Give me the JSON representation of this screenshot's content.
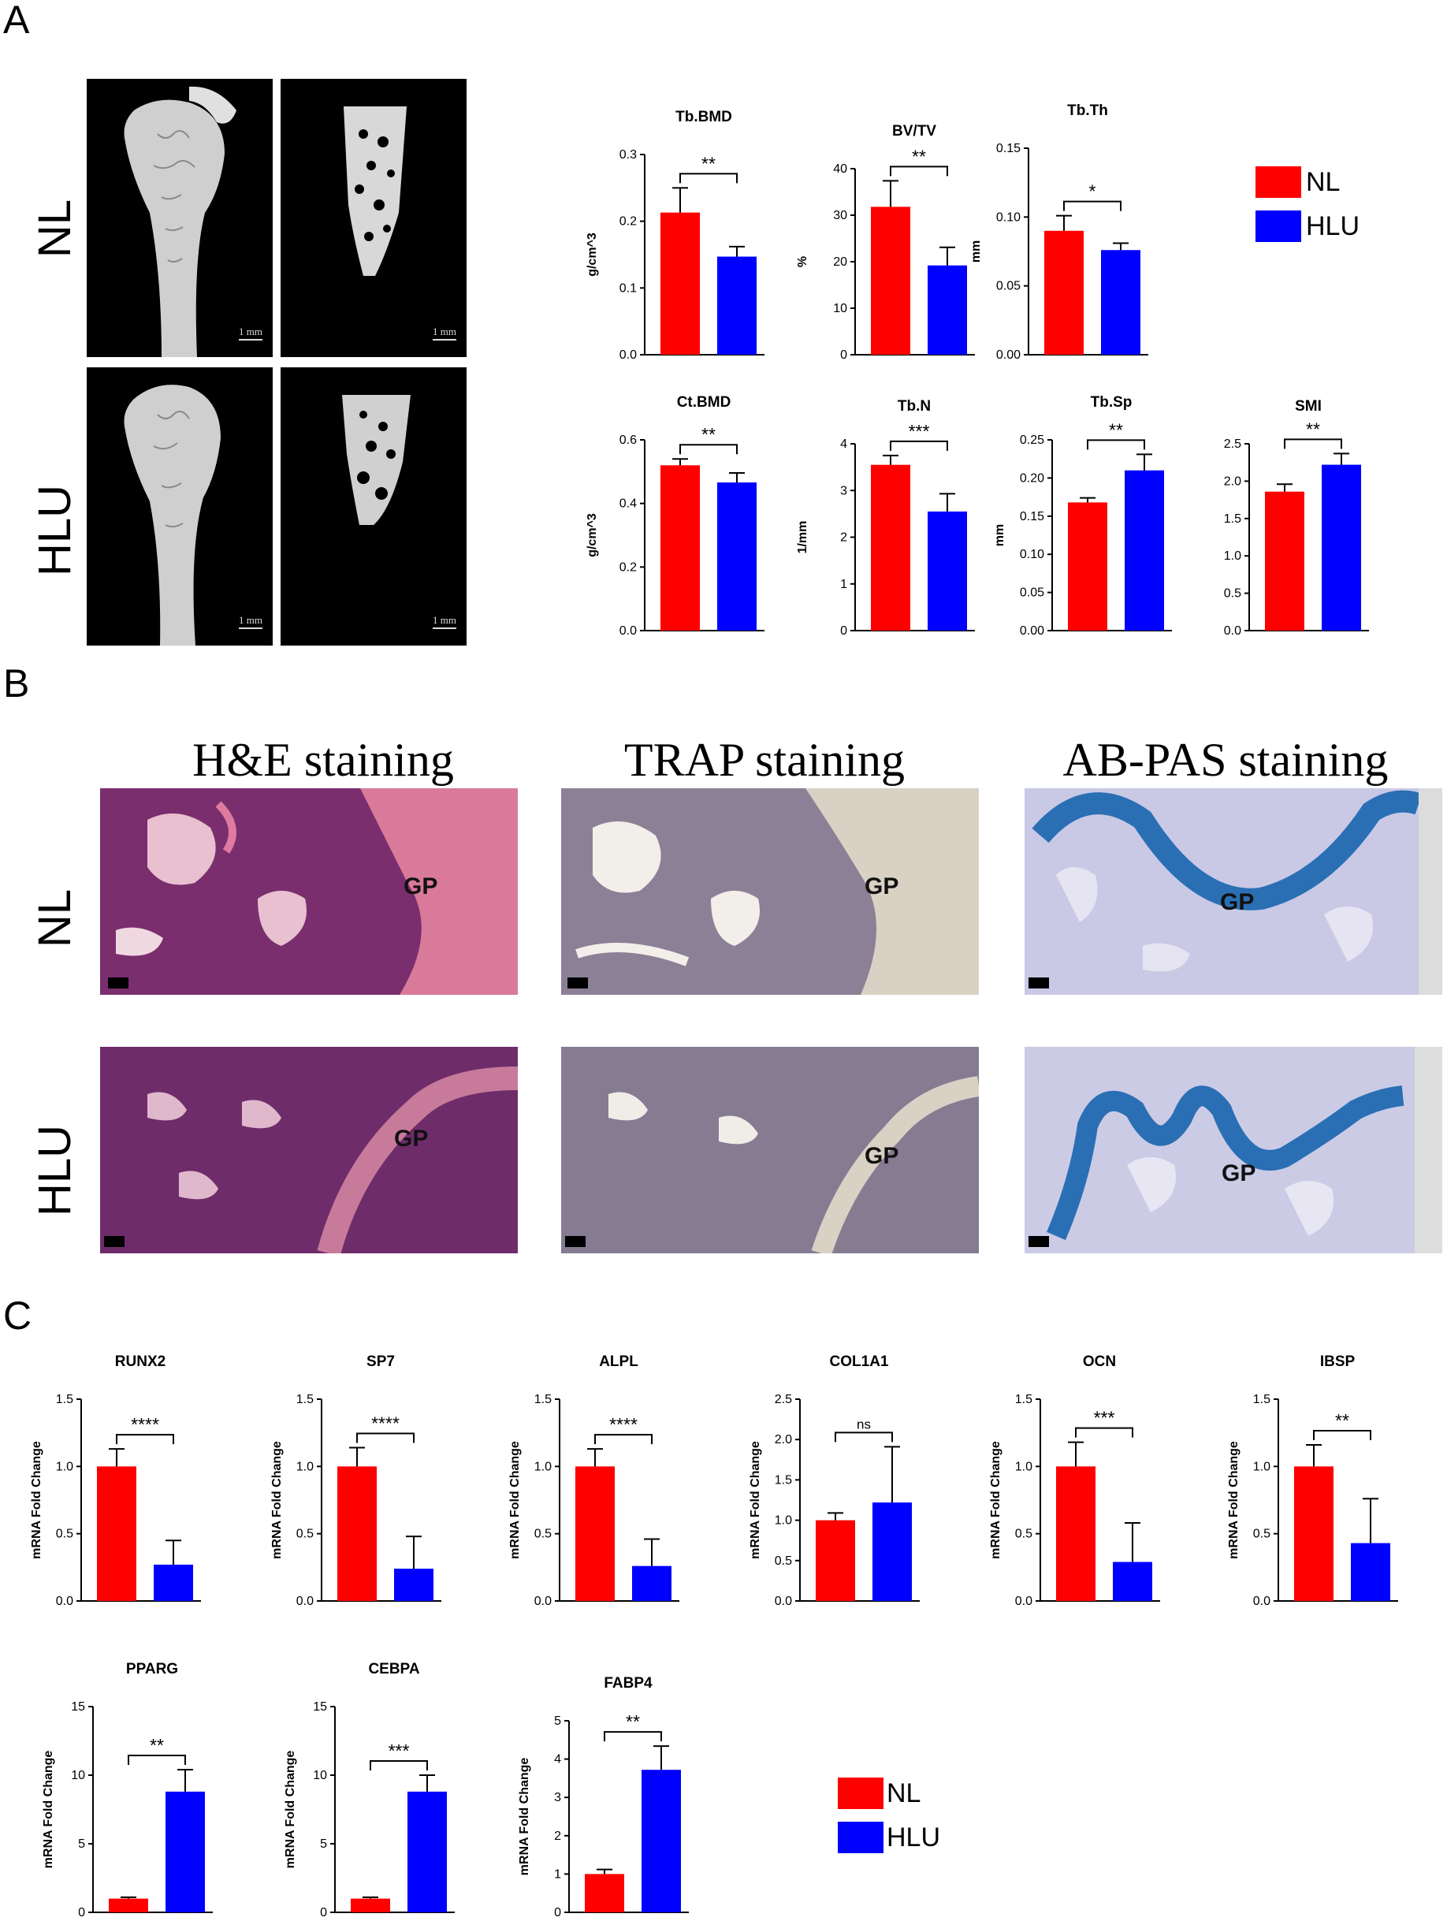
{
  "panels": {
    "a": "A",
    "b": "B",
    "c": "C"
  },
  "groups": {
    "nl": "NL",
    "hlu": "HLU"
  },
  "colors": {
    "nl": "#ff0000",
    "hlu": "#0000ff"
  },
  "microct": {
    "scale_label": "1 mm"
  },
  "staining": {
    "he_title": "H&E staining",
    "trap_title": "TRAP staining",
    "abpas_title": "AB-PAS staining",
    "gp_label": "GP"
  },
  "legend": {
    "nl": "NL",
    "hlu": "HLU"
  },
  "chart_data": [
    {
      "id": "tbbmd",
      "type": "bar",
      "title": "Tb.BMD",
      "ylabel": "g/cm^3",
      "ylim": [
        0,
        0.3
      ],
      "yticks": [
        "0.0",
        "0.1",
        "0.2",
        "0.3"
      ],
      "tickvals": [
        0,
        0.1,
        0.2,
        0.3
      ],
      "categories": [
        "NL",
        "HLU"
      ],
      "values": [
        0.213,
        0.147
      ],
      "errors": [
        0.037,
        0.015
      ],
      "sig": "**"
    },
    {
      "id": "bvtv",
      "type": "bar",
      "title": "BV/TV",
      "ylabel": "%",
      "ylim": [
        0,
        40
      ],
      "yticks": [
        "0",
        "10",
        "20",
        "30",
        "40"
      ],
      "tickvals": [
        0,
        10,
        20,
        30,
        40
      ],
      "categories": [
        "NL",
        "HLU"
      ],
      "values": [
        31.8,
        19.2
      ],
      "errors": [
        5.6,
        3.9
      ],
      "sig": "**"
    },
    {
      "id": "tbth",
      "type": "bar",
      "title": "Tb.Th",
      "ylabel": "mm",
      "ylim": [
        0,
        0.15
      ],
      "yticks": [
        "0.00",
        "0.05",
        "0.10",
        "0.15"
      ],
      "tickvals": [
        0,
        0.05,
        0.1,
        0.15
      ],
      "categories": [
        "NL",
        "HLU"
      ],
      "values": [
        0.09,
        0.076
      ],
      "errors": [
        0.011,
        0.005
      ],
      "sig": "*"
    },
    {
      "id": "ctbmd",
      "type": "bar",
      "title": "Ct.BMD",
      "ylabel": "g/cm^3",
      "ylim": [
        0,
        0.6
      ],
      "yticks": [
        "0.0",
        "0.2",
        "0.4",
        "0.6"
      ],
      "tickvals": [
        0,
        0.2,
        0.4,
        0.6
      ],
      "categories": [
        "NL",
        "HLU"
      ],
      "values": [
        0.52,
        0.466
      ],
      "errors": [
        0.02,
        0.03
      ],
      "sig": "**"
    },
    {
      "id": "tbn",
      "type": "bar",
      "title": "Tb.N",
      "ylabel": "1/mm",
      "ylim": [
        0,
        4
      ],
      "yticks": [
        "0",
        "1",
        "2",
        "3",
        "4"
      ],
      "tickvals": [
        0,
        1,
        2,
        3,
        4
      ],
      "categories": [
        "NL",
        "HLU"
      ],
      "values": [
        3.55,
        2.55
      ],
      "errors": [
        0.2,
        0.38
      ],
      "sig": "***"
    },
    {
      "id": "tbsp",
      "type": "bar",
      "title": "Tb.Sp",
      "ylabel": "mm",
      "ylim": [
        0,
        0.25
      ],
      "yticks": [
        "0.00",
        "0.05",
        "0.10",
        "0.15",
        "0.20",
        "0.25"
      ],
      "tickvals": [
        0,
        0.05,
        0.1,
        0.15,
        0.2,
        0.25
      ],
      "categories": [
        "NL",
        "HLU"
      ],
      "values": [
        0.168,
        0.21
      ],
      "errors": [
        0.006,
        0.021
      ],
      "sig": "**"
    },
    {
      "id": "smi",
      "type": "bar",
      "title": "SMI",
      "ylabel": "",
      "ylim": [
        0,
        2.5
      ],
      "yticks": [
        "0.0",
        "0.5",
        "1.0",
        "1.5",
        "2.0",
        "2.5"
      ],
      "tickvals": [
        0,
        0.5,
        1,
        1.5,
        2,
        2.5
      ],
      "categories": [
        "NL",
        "HLU"
      ],
      "values": [
        1.86,
        2.22
      ],
      "errors": [
        0.1,
        0.15
      ],
      "sig": "**"
    },
    {
      "id": "runx2",
      "type": "bar",
      "title": "RUNX2",
      "ylabel": "mRNA Fold Change",
      "ylim": [
        0,
        1.5
      ],
      "yticks": [
        "0.0",
        "0.5",
        "1.0",
        "1.5"
      ],
      "tickvals": [
        0,
        0.5,
        1,
        1.5
      ],
      "categories": [
        "NL",
        "HLU"
      ],
      "values": [
        1.0,
        0.27
      ],
      "errors": [
        0.13,
        0.18
      ],
      "sig": "****"
    },
    {
      "id": "sp7",
      "type": "bar",
      "title": "SP7",
      "ylabel": "mRNA Fold Change",
      "ylim": [
        0,
        1.5
      ],
      "yticks": [
        "0.0",
        "0.5",
        "1.0",
        "1.5"
      ],
      "tickvals": [
        0,
        0.5,
        1,
        1.5
      ],
      "categories": [
        "NL",
        "HLU"
      ],
      "values": [
        1.0,
        0.24
      ],
      "errors": [
        0.14,
        0.24
      ],
      "sig": "****"
    },
    {
      "id": "alpl",
      "type": "bar",
      "title": "ALPL",
      "ylabel": "mRNA Fold Change",
      "ylim": [
        0,
        1.5
      ],
      "yticks": [
        "0.0",
        "0.5",
        "1.0",
        "1.5"
      ],
      "tickvals": [
        0,
        0.5,
        1,
        1.5
      ],
      "categories": [
        "NL",
        "HLU"
      ],
      "values": [
        1.0,
        0.26
      ],
      "errors": [
        0.13,
        0.2
      ],
      "sig": "****"
    },
    {
      "id": "col1a1",
      "type": "bar",
      "title": "COL1A1",
      "ylabel": "mRNA Fold Change",
      "ylim": [
        0,
        2.5
      ],
      "yticks": [
        "0.0",
        "0.5",
        "1.0",
        "1.5",
        "2.0",
        "2.5"
      ],
      "tickvals": [
        0,
        0.5,
        1,
        1.5,
        2,
        2.5
      ],
      "categories": [
        "NL",
        "HLU"
      ],
      "values": [
        1.0,
        1.22
      ],
      "errors": [
        0.09,
        0.69
      ],
      "sig": "ns"
    },
    {
      "id": "ocn",
      "type": "bar",
      "title": "OCN",
      "ylabel": "mRNA Fold Change",
      "ylim": [
        0,
        1.5
      ],
      "yticks": [
        "0.0",
        "0.5",
        "1.0",
        "1.5"
      ],
      "tickvals": [
        0,
        0.5,
        1,
        1.5
      ],
      "categories": [
        "NL",
        "HLU"
      ],
      "values": [
        1.0,
        0.29
      ],
      "errors": [
        0.18,
        0.29
      ],
      "sig": "***"
    },
    {
      "id": "ibsp",
      "type": "bar",
      "title": "IBSP",
      "ylabel": "mRNA Fold Change",
      "ylim": [
        0,
        1.5
      ],
      "yticks": [
        "0.0",
        "0.5",
        "1.0",
        "1.5"
      ],
      "tickvals": [
        0,
        0.5,
        1,
        1.5
      ],
      "categories": [
        "NL",
        "HLU"
      ],
      "values": [
        1.0,
        0.43
      ],
      "errors": [
        0.16,
        0.33
      ],
      "sig": "**"
    },
    {
      "id": "pparg",
      "type": "bar",
      "title": "PPARG",
      "ylabel": "mRNA Fold Change",
      "ylim": [
        0,
        15
      ],
      "yticks": [
        "0",
        "5",
        "10",
        "15"
      ],
      "tickvals": [
        0,
        5,
        10,
        15
      ],
      "categories": [
        "NL",
        "HLU"
      ],
      "values": [
        1.0,
        8.8
      ],
      "errors": [
        0.1,
        1.6
      ],
      "sig": "**"
    },
    {
      "id": "cebpa",
      "type": "bar",
      "title": "CEBPA",
      "ylabel": "mRNA Fold Change",
      "ylim": [
        0,
        15
      ],
      "yticks": [
        "0",
        "5",
        "10",
        "15"
      ],
      "tickvals": [
        0,
        5,
        10,
        15
      ],
      "categories": [
        "NL",
        "HLU"
      ],
      "values": [
        1.0,
        8.8
      ],
      "errors": [
        0.1,
        1.2
      ],
      "sig": "***"
    },
    {
      "id": "fabp4",
      "type": "bar",
      "title": "FABP4",
      "ylabel": "mRNA Fold Change",
      "ylim": [
        0,
        5
      ],
      "yticks": [
        "0",
        "1",
        "2",
        "3",
        "4",
        "5"
      ],
      "tickvals": [
        0,
        1,
        2,
        3,
        4,
        5
      ],
      "categories": [
        "NL",
        "HLU"
      ],
      "values": [
        1.0,
        3.72
      ],
      "errors": [
        0.12,
        0.62
      ],
      "sig": "**"
    }
  ]
}
